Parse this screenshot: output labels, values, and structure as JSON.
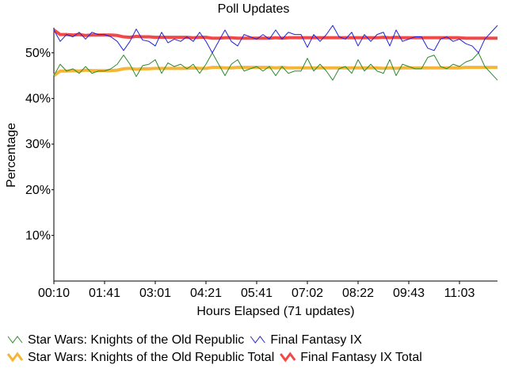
{
  "chart_data": {
    "type": "line",
    "title": "Poll Updates",
    "x_label": "Hours Elapsed (71 updates)",
    "y_label": "Percentage",
    "categories": [
      "00:10",
      null,
      null,
      null,
      null,
      null,
      null,
      null,
      "01:41",
      null,
      null,
      null,
      null,
      null,
      null,
      null,
      "03:01",
      null,
      null,
      null,
      null,
      null,
      null,
      null,
      "04:21",
      null,
      null,
      null,
      null,
      null,
      null,
      null,
      "05:41",
      null,
      null,
      null,
      null,
      null,
      null,
      null,
      "07:02",
      null,
      null,
      null,
      null,
      null,
      null,
      null,
      "08:22",
      null,
      null,
      null,
      null,
      null,
      null,
      null,
      "09:43",
      null,
      null,
      null,
      null,
      null,
      null,
      null,
      "11:03",
      null,
      null,
      null,
      null,
      null,
      null
    ],
    "ylim": [
      0,
      55.5
    ],
    "yticks": [
      {
        "value": 10,
        "label": "10%"
      },
      {
        "value": 20,
        "label": "20%"
      },
      {
        "value": 30,
        "label": "30%"
      },
      {
        "value": 40,
        "label": "40%"
      },
      {
        "value": 50,
        "label": "50%"
      }
    ],
    "legend": "bottom",
    "series": [
      {
        "name": "Star Wars: Knights of the Old Republic",
        "color": "#2e8b2e",
        "width": 1,
        "values": [
          45,
          47.5,
          46,
          46.5,
          45.5,
          47,
          45.5,
          46,
          46,
          46.5,
          47.5,
          49.5,
          47.5,
          44.8,
          47.2,
          47.5,
          48.5,
          45.5,
          47.8,
          47,
          47.5,
          46.5,
          47.5,
          45.5,
          47.5,
          50,
          47.5,
          45,
          47.5,
          48.5,
          46,
          46.5,
          47,
          46,
          47,
          45,
          47,
          45.5,
          46,
          46,
          48.8,
          46,
          47.5,
          46,
          44,
          46.5,
          47,
          45.5,
          48.5,
          46,
          47.5,
          46,
          45.5,
          48.5,
          45,
          47.5,
          47,
          46.5,
          46.5,
          49,
          49.5,
          47,
          46.5,
          47.5,
          47,
          48,
          48.5,
          50,
          47,
          45.5,
          44
        ]
      },
      {
        "name": "Final Fantasy IX",
        "color": "#2323d4",
        "width": 1,
        "values": [
          55,
          52.5,
          54,
          53.5,
          54.5,
          53,
          54.5,
          54,
          54,
          53.5,
          52.5,
          50.5,
          52.5,
          55.2,
          52.8,
          52.5,
          51.5,
          54.5,
          52.2,
          53,
          52.5,
          53.5,
          52.5,
          54.5,
          52.5,
          50,
          52.5,
          55,
          52.5,
          51.5,
          54,
          53.5,
          53,
          54,
          53,
          55,
          53,
          54.5,
          54,
          54,
          51.2,
          54,
          52.5,
          54,
          56,
          53.5,
          53,
          54.5,
          51.5,
          54,
          52.5,
          54,
          54.5,
          51.5,
          55,
          52.5,
          53,
          53.5,
          53.5,
          51,
          50.5,
          53,
          53.5,
          52.5,
          53,
          52,
          51.5,
          50,
          53,
          54.5,
          56
        ]
      },
      {
        "name": "Star Wars: Knights of the Old Republic Total",
        "color": "#f5b638",
        "width": 4,
        "values": [
          45,
          46,
          46,
          46.1,
          46,
          46.2,
          46.1,
          46.1,
          46.1,
          46.1,
          46.2,
          46.5,
          46.6,
          46.4,
          46.5,
          46.5,
          46.6,
          46.6,
          46.6,
          46.6,
          46.6,
          46.6,
          46.7,
          46.6,
          46.6,
          46.8,
          46.8,
          46.7,
          46.7,
          46.8,
          46.8,
          46.8,
          46.8,
          46.8,
          46.8,
          46.7,
          46.8,
          46.7,
          46.7,
          46.7,
          46.7,
          46.7,
          46.7,
          46.7,
          46.7,
          46.7,
          46.7,
          46.7,
          46.7,
          46.7,
          46.7,
          46.7,
          46.6,
          46.7,
          46.6,
          46.7,
          46.7,
          46.7,
          46.7,
          46.7,
          46.7,
          46.7,
          46.7,
          46.7,
          46.7,
          46.8,
          46.8,
          46.8,
          46.8,
          46.8,
          46.8
        ]
      },
      {
        "name": "Final Fantasy IX Total",
        "color": "#f24848",
        "width": 4,
        "values": [
          55,
          54,
          54,
          53.9,
          54,
          53.8,
          53.9,
          53.9,
          53.9,
          53.9,
          53.8,
          53.5,
          53.4,
          53.6,
          53.5,
          53.5,
          53.4,
          53.4,
          53.4,
          53.4,
          53.4,
          53.4,
          53.3,
          53.4,
          53.4,
          53.2,
          53.2,
          53.3,
          53.3,
          53.2,
          53.2,
          53.2,
          53.2,
          53.2,
          53.2,
          53.3,
          53.2,
          53.3,
          53.3,
          53.3,
          53.3,
          53.3,
          53.3,
          53.3,
          53.3,
          53.3,
          53.3,
          53.3,
          53.3,
          53.3,
          53.3,
          53.3,
          53.4,
          53.3,
          53.4,
          53.3,
          53.3,
          53.3,
          53.3,
          53.3,
          53.3,
          53.3,
          53.3,
          53.3,
          53.3,
          53.2,
          53.2,
          53.2,
          53.2,
          53.2,
          53.2
        ]
      }
    ]
  }
}
